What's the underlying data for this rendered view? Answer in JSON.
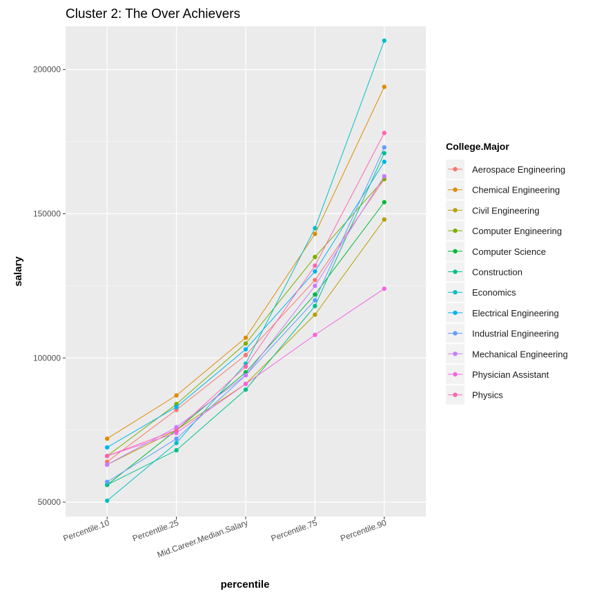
{
  "chart_data": {
    "type": "line",
    "title": "Cluster 2: The Over Achievers",
    "xlabel": "percentile",
    "ylabel": "salary",
    "categories": [
      "Percentile.10",
      "Percentile.25",
      "Mid.Career.Median.Salary",
      "Percentile.75",
      "Percentile.90"
    ],
    "y_ticks": [
      50000,
      100000,
      150000,
      200000
    ],
    "y_tick_labels": [
      "50000",
      "100000",
      "150000",
      "200000"
    ],
    "ylim": [
      45000,
      215000
    ],
    "grid": true,
    "legend_title": "College.Major",
    "legend_position": "right",
    "series": [
      {
        "name": "Aerospace Engineering",
        "color": "#F8766D",
        "values": [
          64000,
          82000,
          101000,
          127000,
          162000
        ]
      },
      {
        "name": "Chemical Engineering",
        "color": "#DE8C00",
        "values": [
          72000,
          87000,
          107000,
          143000,
          194000
        ]
      },
      {
        "name": "Civil Engineering",
        "color": "#B79F00",
        "values": [
          63000,
          75000,
          91000,
          115000,
          148000
        ]
      },
      {
        "name": "Computer Engineering",
        "color": "#7CAE00",
        "values": [
          66000,
          84000,
          105000,
          135000,
          162000
        ]
      },
      {
        "name": "Computer Science",
        "color": "#00BA38",
        "values": [
          56000,
          75000,
          95000,
          122000,
          154000
        ]
      },
      {
        "name": "Construction",
        "color": "#00C08B",
        "values": [
          56000,
          68000,
          89000,
          118000,
          171000
        ]
      },
      {
        "name": "Economics",
        "color": "#00BFC4",
        "values": [
          50500,
          70500,
          98000,
          145000,
          210000
        ]
      },
      {
        "name": "Electrical Engineering",
        "color": "#00B4F0",
        "values": [
          69000,
          83000,
          103000,
          130000,
          168000
        ]
      },
      {
        "name": "Industrial Engineering",
        "color": "#619CFF",
        "values": [
          57000,
          72000,
          94000,
          120000,
          173000
        ]
      },
      {
        "name": "Mechanical Engineering",
        "color": "#C77CFF",
        "values": [
          63000,
          76000,
          94000,
          125000,
          163000
        ]
      },
      {
        "name": "Physician Assistant",
        "color": "#F564E3",
        "values": [
          66000,
          74000,
          91000,
          108000,
          124000
        ]
      },
      {
        "name": "Physics",
        "color": "#FF64B0",
        "values": [
          66000,
          75000,
          97000,
          132000,
          178000
        ]
      }
    ]
  }
}
